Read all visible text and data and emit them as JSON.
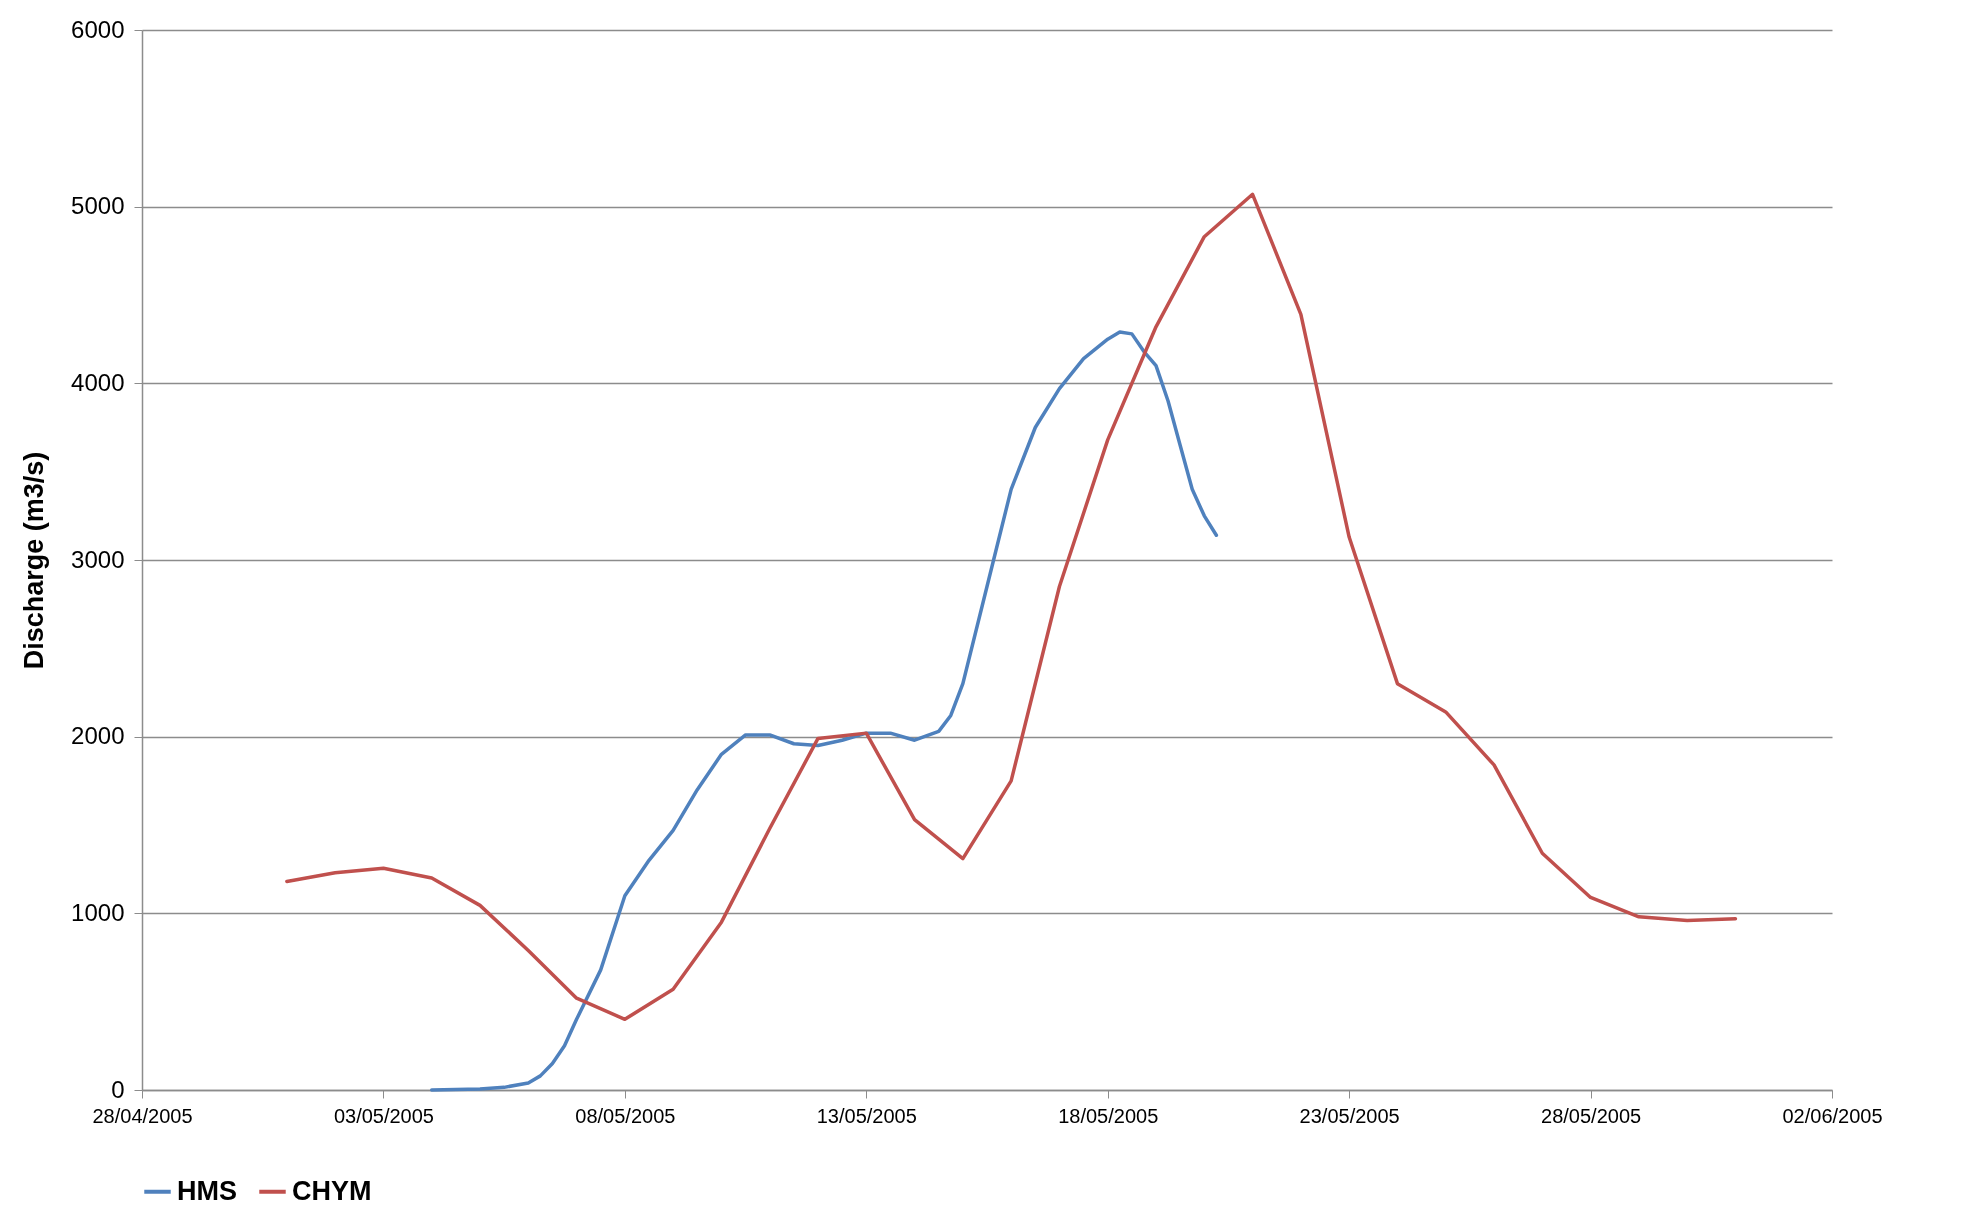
{
  "chart_data": {
    "type": "line",
    "ylabel": "Discharge  (m3/s)",
    "xlim": [
      "2005-04-28",
      "2005-06-02"
    ],
    "xticks": [
      {
        "value": "2005-04-28",
        "label": "28/04/2005"
      },
      {
        "value": "2005-05-03",
        "label": "03/05/2005"
      },
      {
        "value": "2005-05-08",
        "label": "08/05/2005"
      },
      {
        "value": "2005-05-13",
        "label": "13/05/2005"
      },
      {
        "value": "2005-05-18",
        "label": "18/05/2005"
      },
      {
        "value": "2005-05-23",
        "label": "23/05/2005"
      },
      {
        "value": "2005-05-28",
        "label": "28/05/2005"
      },
      {
        "value": "2005-06-02",
        "label": "02/06/2005"
      }
    ],
    "ylim": [
      0,
      6000
    ],
    "yticks": [
      0,
      1000,
      2000,
      3000,
      4000,
      5000,
      6000
    ],
    "grid": "y",
    "legend": "bottom",
    "line_style": "solid",
    "marker": "none",
    "series": [
      {
        "name": "HMS",
        "color": "#4f81bd",
        "x": [
          "2005-05-04",
          "2005-05-05",
          "2005-05-05T12:00",
          "2005-05-06",
          "2005-05-06T06:00",
          "2005-05-06T12:00",
          "2005-05-06T18:00",
          "2005-05-07",
          "2005-05-07T12:00",
          "2005-05-08",
          "2005-05-08T12:00",
          "2005-05-09",
          "2005-05-09T12:00",
          "2005-05-10",
          "2005-05-10T12:00",
          "2005-05-11",
          "2005-05-11T12:00",
          "2005-05-12",
          "2005-05-12T12:00",
          "2005-05-13",
          "2005-05-13T12:00",
          "2005-05-14",
          "2005-05-14T12:00",
          "2005-05-14T18:00",
          "2005-05-15",
          "2005-05-15T12:00",
          "2005-05-16",
          "2005-05-16T12:00",
          "2005-05-17",
          "2005-05-17T12:00",
          "2005-05-18",
          "2005-05-18T06:00",
          "2005-05-18T12:00",
          "2005-05-18T18:00",
          "2005-05-19",
          "2005-05-19T06:00",
          "2005-05-19T12:00",
          "2005-05-19T18:00",
          "2005-05-20",
          "2005-05-20T06:00"
        ],
        "values": [
          0,
          5,
          15,
          40,
          80,
          150,
          250,
          400,
          680,
          1100,
          1300,
          1470,
          1700,
          1900,
          2010,
          2010,
          1960,
          1950,
          1980,
          2020,
          2020,
          1980,
          2030,
          2120,
          2300,
          2850,
          3400,
          3750,
          3970,
          4140,
          4250,
          4290,
          4280,
          4180,
          4100,
          3900,
          3650,
          3400,
          3250,
          3140
        ]
      },
      {
        "name": "CHYM",
        "color": "#c0504d",
        "x": [
          "2005-05-01",
          "2005-05-02",
          "2005-05-03",
          "2005-05-04",
          "2005-05-05",
          "2005-05-06",
          "2005-05-07",
          "2005-05-08",
          "2005-05-09",
          "2005-05-10",
          "2005-05-11",
          "2005-05-12",
          "2005-05-13",
          "2005-05-14",
          "2005-05-15",
          "2005-05-16",
          "2005-05-17",
          "2005-05-18",
          "2005-05-19",
          "2005-05-20",
          "2005-05-21",
          "2005-05-22",
          "2005-05-23",
          "2005-05-24",
          "2005-05-25",
          "2005-05-26",
          "2005-05-27",
          "2005-05-28",
          "2005-05-29",
          "2005-05-30",
          "2005-05-31"
        ],
        "values": [
          1180,
          1230,
          1255,
          1200,
          1045,
          790,
          520,
          400,
          570,
          950,
          1480,
          1990,
          2020,
          1530,
          1310,
          1750,
          2850,
          3680,
          4320,
          4830,
          5070,
          4390,
          3130,
          2300,
          2140,
          1840,
          1340,
          1090,
          980,
          960,
          970
        ]
      }
    ]
  }
}
